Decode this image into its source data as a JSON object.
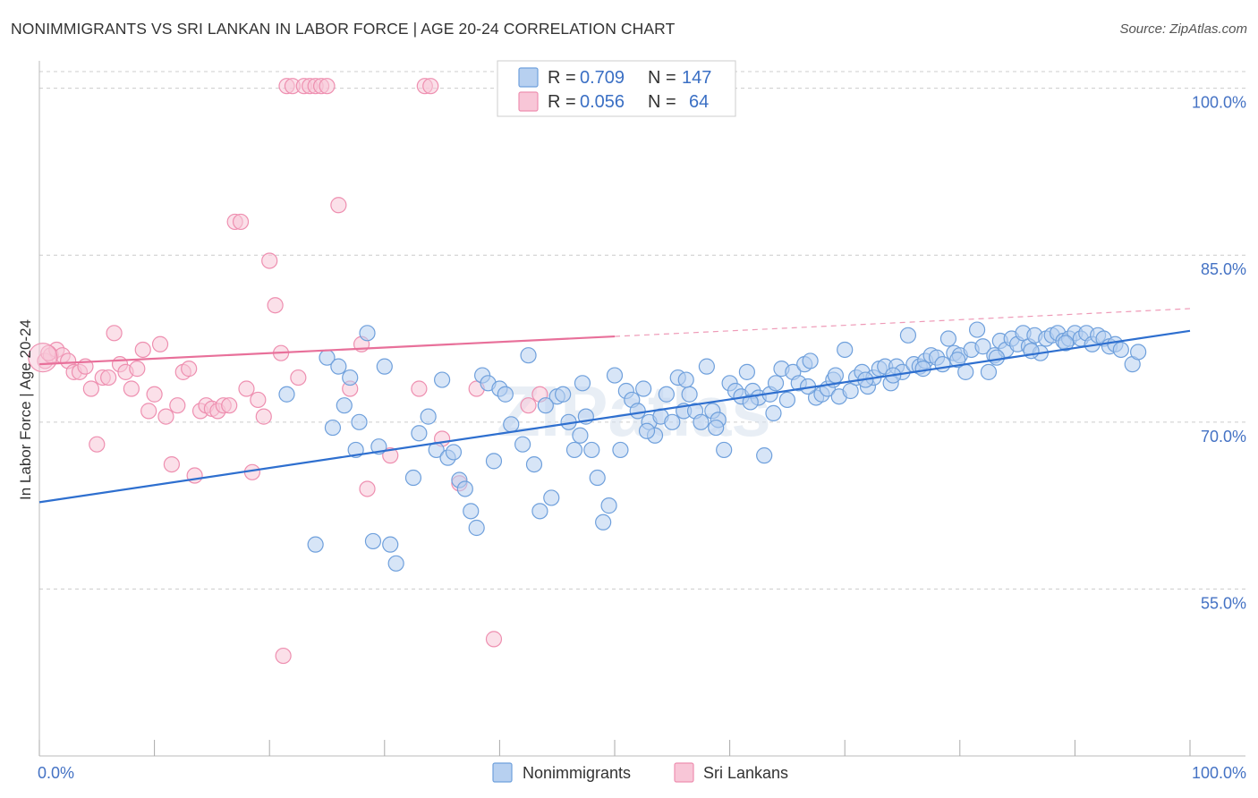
{
  "title": "NONIMMIGRANTS VS SRI LANKAN IN LABOR FORCE | AGE 20-24 CORRELATION CHART",
  "source": "Source: ZipAtlas.com",
  "watermark": "ZIPatlas",
  "colors": {
    "blue": "#6fa0dc",
    "blue_fill": "#b7d0f0",
    "blue_line": "#2e6fcf",
    "pink": "#ee8fb0",
    "pink_fill": "#f8c6d7",
    "pink_line": "#e8709a",
    "grid": "#cccccc",
    "tick_text": "#4472c4"
  },
  "legend": {
    "rows": [
      {
        "series": "Nonimmigrants",
        "r_label": "R = ",
        "r_value": "0.709",
        "n_label": "N = ",
        "n_value": "147"
      },
      {
        "series": "Sri Lankans",
        "r_label": "R = ",
        "r_value": "0.056",
        "n_label": "N = ",
        "n_value": "64"
      }
    ]
  },
  "chart_data": {
    "type": "scatter",
    "title": "NONIMMIGRANTS VS SRI LANKAN IN LABOR FORCE | AGE 20-24 CORRELATION CHART",
    "xlabel": "",
    "ylabel": "In Labor Force | Age 20-24",
    "xlim": [
      0,
      100
    ],
    "ylim": [
      40,
      101.5
    ],
    "x_tick_labels": [
      "0.0%",
      "100.0%"
    ],
    "y_ticks": [
      55,
      70,
      85,
      100
    ],
    "y_tick_labels": [
      "55.0%",
      "70.0%",
      "85.0%",
      "100.0%"
    ],
    "grid": true,
    "legend_position": "bottom",
    "series": [
      {
        "name": "Nonimmigrants",
        "trend": {
          "x0": 0,
          "y0": 62.8,
          "x1": 100,
          "y1": 78.2,
          "dashed_after": null
        },
        "points": [
          [
            21.5,
            72.5
          ],
          [
            24.0,
            59.0
          ],
          [
            25.0,
            75.8
          ],
          [
            25.5,
            69.5
          ],
          [
            26.0,
            75.0
          ],
          [
            26.5,
            71.5
          ],
          [
            27.0,
            74.0
          ],
          [
            27.5,
            67.5
          ],
          [
            28.5,
            78.0
          ],
          [
            29.0,
            59.3
          ],
          [
            29.5,
            67.8
          ],
          [
            30.0,
            75.0
          ],
          [
            30.5,
            59.0
          ],
          [
            31.0,
            57.3
          ],
          [
            32.5,
            65.0
          ],
          [
            33.0,
            69.0
          ],
          [
            34.5,
            67.5
          ],
          [
            35.0,
            73.8
          ],
          [
            35.5,
            66.8
          ],
          [
            36.0,
            67.3
          ],
          [
            36.5,
            64.8
          ],
          [
            37.0,
            64.0
          ],
          [
            37.5,
            62.0
          ],
          [
            38.0,
            60.5
          ],
          [
            38.5,
            74.2
          ],
          [
            39.0,
            73.5
          ],
          [
            39.5,
            66.5
          ],
          [
            40.0,
            73.0
          ],
          [
            40.5,
            72.5
          ],
          [
            41.0,
            69.8
          ],
          [
            42.0,
            68.0
          ],
          [
            42.5,
            76.0
          ],
          [
            43.0,
            66.2
          ],
          [
            43.5,
            62.0
          ],
          [
            44.5,
            63.2
          ],
          [
            45.0,
            72.3
          ],
          [
            45.5,
            72.5
          ],
          [
            46.0,
            70.0
          ],
          [
            46.5,
            67.5
          ],
          [
            47.0,
            68.8
          ],
          [
            47.5,
            70.5
          ],
          [
            48.0,
            67.5
          ],
          [
            48.5,
            65.0
          ],
          [
            49.0,
            61.0
          ],
          [
            49.5,
            62.5
          ],
          [
            50.0,
            74.2
          ],
          [
            50.5,
            67.5
          ],
          [
            51.0,
            72.8
          ],
          [
            51.5,
            72.0
          ],
          [
            52.0,
            71.0
          ],
          [
            52.5,
            73.0
          ],
          [
            53.0,
            70.0
          ],
          [
            53.5,
            68.8
          ],
          [
            54.0,
            70.5
          ],
          [
            54.5,
            72.5
          ],
          [
            55.0,
            70.0
          ],
          [
            55.5,
            74.0
          ],
          [
            56.0,
            71.0
          ],
          [
            56.5,
            72.5
          ],
          [
            57.0,
            71.0
          ],
          [
            57.5,
            70.0
          ],
          [
            58.0,
            75.0
          ],
          [
            58.5,
            71.0
          ],
          [
            59.0,
            70.2
          ],
          [
            59.5,
            67.5
          ],
          [
            60.0,
            73.5
          ],
          [
            60.5,
            72.8
          ],
          [
            61.0,
            72.3
          ],
          [
            61.5,
            74.5
          ],
          [
            62.0,
            72.8
          ],
          [
            62.5,
            72.2
          ],
          [
            63.0,
            67.0
          ],
          [
            63.5,
            72.5
          ],
          [
            64.0,
            73.5
          ],
          [
            64.5,
            74.8
          ],
          [
            65.0,
            72.0
          ],
          [
            65.5,
            74.5
          ],
          [
            66.0,
            73.5
          ],
          [
            66.5,
            75.2
          ],
          [
            67.0,
            75.5
          ],
          [
            67.5,
            72.2
          ],
          [
            68.0,
            72.5
          ],
          [
            68.5,
            73.0
          ],
          [
            69.0,
            73.8
          ],
          [
            69.5,
            72.3
          ],
          [
            70.0,
            76.5
          ],
          [
            70.5,
            72.8
          ],
          [
            71.0,
            74.0
          ],
          [
            71.5,
            74.5
          ],
          [
            72.0,
            73.2
          ],
          [
            72.5,
            74.0
          ],
          [
            73.0,
            74.8
          ],
          [
            73.5,
            75.0
          ],
          [
            74.0,
            73.5
          ],
          [
            74.5,
            75.0
          ],
          [
            75.0,
            74.5
          ],
          [
            75.5,
            77.8
          ],
          [
            76.0,
            75.2
          ],
          [
            76.5,
            75.0
          ],
          [
            77.0,
            75.5
          ],
          [
            77.5,
            76.0
          ],
          [
            78.0,
            75.8
          ],
          [
            78.5,
            75.2
          ],
          [
            79.0,
            77.5
          ],
          [
            79.5,
            76.2
          ],
          [
            80.0,
            76.0
          ],
          [
            80.5,
            74.5
          ],
          [
            81.0,
            76.5
          ],
          [
            81.5,
            78.3
          ],
          [
            82.0,
            76.8
          ],
          [
            82.5,
            74.5
          ],
          [
            83.0,
            76.0
          ],
          [
            83.5,
            77.3
          ],
          [
            84.0,
            76.5
          ],
          [
            84.5,
            77.5
          ],
          [
            85.0,
            77.0
          ],
          [
            85.5,
            78.0
          ],
          [
            86.0,
            76.8
          ],
          [
            86.5,
            77.8
          ],
          [
            87.0,
            76.2
          ],
          [
            87.5,
            77.5
          ],
          [
            88.0,
            77.8
          ],
          [
            88.5,
            78.0
          ],
          [
            89.0,
            77.3
          ],
          [
            89.5,
            77.5
          ],
          [
            90.0,
            78.0
          ],
          [
            90.5,
            77.5
          ],
          [
            91.0,
            78.0
          ],
          [
            91.5,
            77.0
          ],
          [
            92.0,
            77.8
          ],
          [
            92.5,
            77.5
          ],
          [
            93.0,
            76.8
          ],
          [
            93.5,
            77.0
          ],
          [
            94.0,
            76.5
          ],
          [
            95.0,
            75.2
          ],
          [
            95.5,
            76.3
          ],
          [
            27.8,
            70.0
          ],
          [
            33.8,
            70.5
          ],
          [
            44.0,
            71.5
          ],
          [
            47.2,
            73.5
          ],
          [
            52.8,
            69.2
          ],
          [
            56.2,
            73.8
          ],
          [
            58.8,
            69.5
          ],
          [
            61.8,
            71.8
          ],
          [
            63.8,
            70.8
          ],
          [
            66.8,
            73.2
          ],
          [
            69.2,
            74.2
          ],
          [
            71.8,
            73.8
          ],
          [
            74.2,
            74.2
          ],
          [
            76.8,
            74.8
          ],
          [
            79.8,
            75.6
          ],
          [
            83.2,
            75.8
          ],
          [
            86.2,
            76.4
          ],
          [
            89.2,
            77.1
          ]
        ]
      },
      {
        "name": "Sri Lankans",
        "trend": {
          "x0": 0,
          "y0": 75.2,
          "x1": 100,
          "y1": 80.2,
          "solid_until_x": 50
        },
        "points": [
          [
            0.5,
            75.5
          ],
          [
            1.0,
            76.0
          ],
          [
            1.5,
            76.5
          ],
          [
            2.0,
            76.0
          ],
          [
            2.5,
            75.5
          ],
          [
            3.0,
            74.5
          ],
          [
            3.5,
            74.5
          ],
          [
            4.0,
            75.0
          ],
          [
            4.5,
            73.0
          ],
          [
            5.0,
            68.0
          ],
          [
            5.5,
            74.0
          ],
          [
            6.0,
            74.0
          ],
          [
            6.5,
            78.0
          ],
          [
            7.0,
            75.2
          ],
          [
            7.5,
            74.5
          ],
          [
            8.0,
            73.0
          ],
          [
            8.5,
            74.8
          ],
          [
            9.0,
            76.5
          ],
          [
            9.5,
            71.0
          ],
          [
            10.0,
            72.5
          ],
          [
            10.5,
            77.0
          ],
          [
            11.0,
            70.5
          ],
          [
            11.5,
            66.2
          ],
          [
            12.0,
            71.5
          ],
          [
            12.5,
            74.5
          ],
          [
            13.0,
            74.8
          ],
          [
            13.5,
            65.2
          ],
          [
            14.0,
            71.0
          ],
          [
            14.5,
            71.5
          ],
          [
            15.0,
            71.2
          ],
          [
            15.5,
            71.0
          ],
          [
            16.0,
            71.5
          ],
          [
            16.5,
            71.5
          ],
          [
            17.0,
            88.0
          ],
          [
            17.5,
            88.0
          ],
          [
            18.0,
            73.0
          ],
          [
            18.5,
            65.5
          ],
          [
            19.0,
            72.0
          ],
          [
            19.5,
            70.5
          ],
          [
            20.0,
            84.5
          ],
          [
            20.5,
            80.5
          ],
          [
            21.0,
            76.2
          ],
          [
            21.5,
            100.2
          ],
          [
            22.0,
            100.2
          ],
          [
            22.5,
            74.0
          ],
          [
            23.0,
            100.2
          ],
          [
            23.5,
            100.2
          ],
          [
            24.0,
            100.2
          ],
          [
            24.5,
            100.2
          ],
          [
            25.0,
            100.2
          ],
          [
            21.2,
            49.0
          ],
          [
            26.0,
            89.5
          ],
          [
            27.0,
            73.0
          ],
          [
            28.0,
            77.0
          ],
          [
            28.5,
            64.0
          ],
          [
            30.5,
            67.0
          ],
          [
            33.0,
            73.0
          ],
          [
            33.5,
            100.2
          ],
          [
            34.0,
            100.2
          ],
          [
            35.0,
            68.5
          ],
          [
            36.5,
            64.5
          ],
          [
            38.0,
            73.0
          ],
          [
            39.5,
            50.5
          ],
          [
            42.5,
            71.5
          ],
          [
            43.5,
            72.5
          ],
          [
            0.8,
            76.2
          ]
        ]
      }
    ]
  }
}
